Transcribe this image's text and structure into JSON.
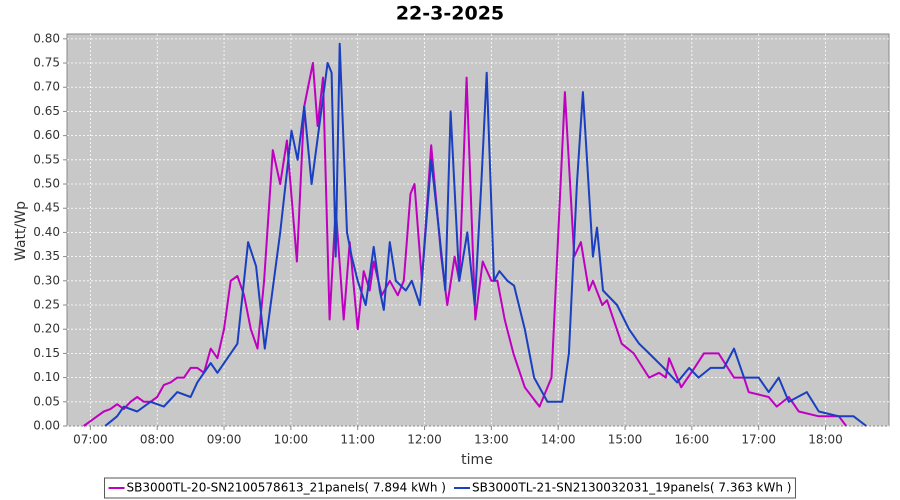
{
  "chart_data": {
    "type": "line",
    "title": "22-3-2025",
    "x_label": "time",
    "y_label": "Watt/Wp",
    "xlim": [
      6.65,
      18.95
    ],
    "ylim": [
      0,
      0.81
    ],
    "grid": true,
    "xticks": [
      {
        "value": 7,
        "label": "07:00"
      },
      {
        "value": 8,
        "label": "08:00"
      },
      {
        "value": 9,
        "label": "09:00"
      },
      {
        "value": 10,
        "label": "10:00"
      },
      {
        "value": 11,
        "label": "11:00"
      },
      {
        "value": 12,
        "label": "12:00"
      },
      {
        "value": 13,
        "label": "13:00"
      },
      {
        "value": 14,
        "label": "14:00"
      },
      {
        "value": 15,
        "label": "15:00"
      },
      {
        "value": 16,
        "label": "16:00"
      },
      {
        "value": 17,
        "label": "17:00"
      },
      {
        "value": 18,
        "label": "18:00"
      }
    ],
    "yticks": [
      {
        "value": 0,
        "label": "0.00"
      },
      0.05,
      {
        "value": 0.1,
        "label": "0.10"
      },
      0.15,
      {
        "value": 0.2,
        "label": "0.20"
      },
      0.25,
      {
        "value": 0.3,
        "label": "0.30"
      },
      0.35,
      {
        "value": 0.4,
        "label": "0.40"
      },
      0.45,
      {
        "value": 0.5,
        "label": "0.50"
      },
      0.55,
      {
        "value": 0.6,
        "label": "0.60"
      },
      0.65,
      {
        "value": 0.7,
        "label": "0.70"
      },
      0.75,
      {
        "value": 0.8,
        "label": "0.80"
      }
    ],
    "series": [
      {
        "name": "SB3000TL-20-SN2100578613_21panels( 7.894 kWh )",
        "color": "#c000c0",
        "x": [
          6.9,
          7.0,
          7.1,
          7.2,
          7.3,
          7.4,
          7.5,
          7.6,
          7.7,
          7.8,
          7.9,
          8.0,
          8.1,
          8.2,
          8.3,
          8.4,
          8.5,
          8.6,
          8.7,
          8.8,
          8.9,
          9.0,
          9.1,
          9.2,
          9.3,
          9.4,
          9.5,
          9.6,
          9.73,
          9.84,
          9.94,
          10.09,
          10.2,
          10.33,
          10.4,
          10.48,
          10.58,
          10.67,
          10.79,
          10.88,
          11.0,
          11.09,
          11.18,
          11.24,
          11.36,
          11.48,
          11.6,
          11.69,
          11.79,
          11.85,
          11.96,
          12.1,
          12.25,
          12.34,
          12.45,
          12.52,
          12.63,
          12.76,
          12.87,
          13.0,
          13.09,
          13.2,
          13.33,
          13.5,
          13.72,
          13.9,
          14.1,
          14.24,
          14.34,
          14.46,
          14.52,
          14.66,
          14.73,
          14.95,
          15.13,
          15.36,
          15.51,
          15.61,
          15.66,
          15.84,
          16.04,
          16.18,
          16.4,
          16.63,
          16.78,
          16.85,
          17.15,
          17.27,
          17.45,
          17.6,
          17.9,
          18.2,
          18.31
        ],
        "values": [
          0,
          0.01,
          0.02,
          0.03,
          0.035,
          0.045,
          0.035,
          0.05,
          0.06,
          0.05,
          0.05,
          0.06,
          0.085,
          0.09,
          0.1,
          0.1,
          0.12,
          0.12,
          0.11,
          0.16,
          0.14,
          0.2,
          0.3,
          0.31,
          0.27,
          0.2,
          0.16,
          0.3,
          0.57,
          0.5,
          0.59,
          0.34,
          0.66,
          0.75,
          0.62,
          0.72,
          0.22,
          0.45,
          0.22,
          0.38,
          0.2,
          0.32,
          0.28,
          0.34,
          0.27,
          0.3,
          0.27,
          0.3,
          0.48,
          0.5,
          0.3,
          0.58,
          0.35,
          0.25,
          0.35,
          0.3,
          0.72,
          0.22,
          0.34,
          0.3,
          0.3,
          0.22,
          0.15,
          0.08,
          0.04,
          0.1,
          0.69,
          0.35,
          0.38,
          0.28,
          0.3,
          0.25,
          0.26,
          0.17,
          0.15,
          0.1,
          0.11,
          0.1,
          0.14,
          0.08,
          0.12,
          0.15,
          0.15,
          0.1,
          0.1,
          0.07,
          0.06,
          0.04,
          0.06,
          0.03,
          0.02,
          0.02,
          0
        ]
      },
      {
        "name": "SB3000TL-21-SN2130032031_19panels( 7.363 kWh )",
        "color": "#1a3fc0",
        "x": [
          7.22,
          7.4,
          7.5,
          7.7,
          7.9,
          8.1,
          8.3,
          8.5,
          8.6,
          8.8,
          8.9,
          9.1,
          9.2,
          9.36,
          9.48,
          9.61,
          9.84,
          10.01,
          10.1,
          10.2,
          10.31,
          10.55,
          10.61,
          10.67,
          10.73,
          10.84,
          10.91,
          11.0,
          11.12,
          11.24,
          11.33,
          11.39,
          11.48,
          11.57,
          11.72,
          11.81,
          11.93,
          12.1,
          12.22,
          12.31,
          12.39,
          12.52,
          12.64,
          12.75,
          12.85,
          12.93,
          13.04,
          13.12,
          13.24,
          13.34,
          13.5,
          13.64,
          13.84,
          14.06,
          14.16,
          14.28,
          14.37,
          14.52,
          14.58,
          14.67,
          14.88,
          15.06,
          15.21,
          15.36,
          15.58,
          15.78,
          15.96,
          16.1,
          16.28,
          16.48,
          16.63,
          16.78,
          17.0,
          17.15,
          17.3,
          17.45,
          17.72,
          17.9,
          18.2,
          18.42,
          18.61
        ],
        "values": [
          0,
          0.02,
          0.04,
          0.03,
          0.05,
          0.04,
          0.07,
          0.06,
          0.09,
          0.13,
          0.11,
          0.15,
          0.17,
          0.38,
          0.33,
          0.16,
          0.4,
          0.61,
          0.55,
          0.66,
          0.5,
          0.75,
          0.73,
          0.35,
          0.79,
          0.4,
          0.35,
          0.3,
          0.25,
          0.37,
          0.28,
          0.24,
          0.38,
          0.3,
          0.28,
          0.3,
          0.25,
          0.55,
          0.4,
          0.28,
          0.65,
          0.3,
          0.4,
          0.25,
          0.5,
          0.73,
          0.3,
          0.32,
          0.3,
          0.29,
          0.2,
          0.1,
          0.05,
          0.05,
          0.15,
          0.5,
          0.69,
          0.35,
          0.41,
          0.28,
          0.25,
          0.2,
          0.17,
          0.15,
          0.12,
          0.09,
          0.12,
          0.1,
          0.12,
          0.12,
          0.16,
          0.1,
          0.1,
          0.07,
          0.1,
          0.05,
          0.07,
          0.03,
          0.02,
          0.02,
          0
        ]
      }
    ]
  }
}
